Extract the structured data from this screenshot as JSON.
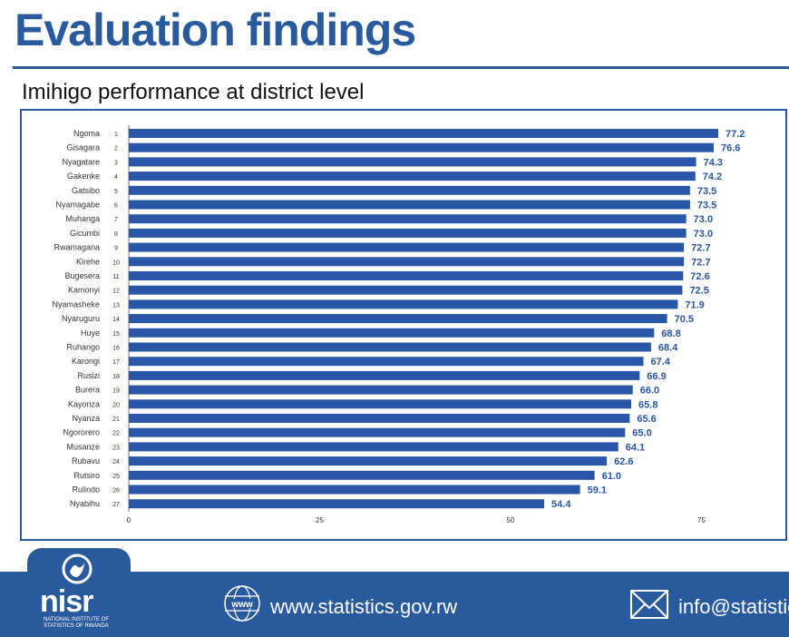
{
  "slide": {
    "title": "Evaluation findings",
    "chart_title": "Imihigo performance at district level"
  },
  "colors": {
    "bar": "#2a56a8",
    "accent": "#2a5a9e",
    "value_label": "#2a56a8"
  },
  "chart_data": {
    "type": "bar",
    "orientation": "horizontal",
    "title": "Imihigo performance at district level",
    "categories": [
      "Ngoma",
      "Gisagara",
      "Nyagatare",
      "Gakenke",
      "Gatsibo",
      "Nyamagabe",
      "Muhanga",
      "Gicumbi",
      "Rwamagana",
      "Kirehe",
      "Bugesera",
      "Kamonyi",
      "Nyamasheke",
      "Nyaruguru",
      "Huye",
      "Ruhango",
      "Karongi",
      "Rusizi",
      "Burera",
      "Kayonza",
      "Nyanza",
      "Ngororero",
      "Musanze",
      "Rubavu",
      "Rutsiro",
      "Rulindo",
      "Nyabihu"
    ],
    "ranks": [
      "1",
      "2",
      "3",
      "4",
      "5",
      "6",
      "7",
      "8",
      "9",
      "10",
      "11",
      "12",
      "13",
      "14",
      "15",
      "16",
      "17",
      "18",
      "19",
      "20",
      "21",
      "22",
      "23",
      "24",
      "25",
      "26",
      "27"
    ],
    "values": [
      77.2,
      76.6,
      74.3,
      74.2,
      73.5,
      73.5,
      73.0,
      73.0,
      72.7,
      72.7,
      72.6,
      72.5,
      71.9,
      70.5,
      68.8,
      68.4,
      67.4,
      66.9,
      66.0,
      65.8,
      65.6,
      65.0,
      64.1,
      62.6,
      61.0,
      59.1,
      54.4
    ],
    "value_labels": [
      "77.2",
      "76.6",
      "74.3",
      "74.2",
      "73.5",
      "73.5",
      "73.0",
      "73.0",
      "72.7",
      "72.7",
      "72.6",
      "72.5",
      "71.9",
      "70.5",
      "68.8",
      "68.4",
      "67.4",
      "66.9",
      "66.0",
      "65.8",
      "65.6",
      "65.0",
      "64.1",
      "62.6",
      "61.0",
      "59.1",
      "54.4"
    ],
    "xticks": [
      "0",
      "25",
      "50",
      "75"
    ],
    "xtick_values": [
      0,
      25,
      50,
      75
    ],
    "xlim": [
      0,
      87
    ],
    "grid": false,
    "legend": "none"
  },
  "footer": {
    "logo_text": "nisr",
    "logo_subtitle": "National Institute of Statistics of Rwanda",
    "www_icon_text": "www",
    "website": "www.statistics.gov.rw",
    "email": "info@statistic"
  }
}
